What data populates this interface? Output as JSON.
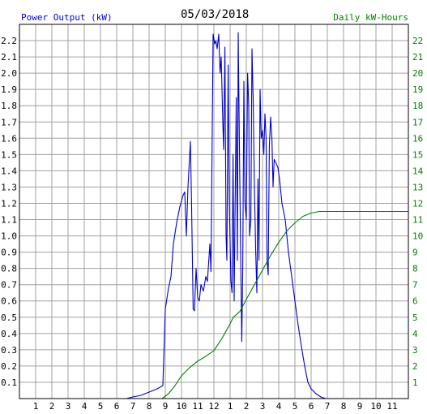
{
  "chart_data": {
    "type": "line",
    "title": "05/03/2018",
    "left_axis_label": "Power Output (kW)",
    "right_axis_label": "Daily kW-Hours",
    "x_tick_labels": [
      "1",
      "2",
      "3",
      "4",
      "5",
      "6",
      "7",
      "8",
      "9",
      "10",
      "11",
      "12",
      "1",
      "2",
      "3",
      "4",
      "5",
      "6",
      "7",
      "8",
      "9",
      "10",
      "11"
    ],
    "x_range_hours": [
      0,
      24
    ],
    "y_left_ticks": [
      "0.1",
      "0.2",
      "0.3",
      "0.4",
      "0.5",
      "0.6",
      "0.7",
      "0.8",
      "0.9",
      "1.0",
      "1.1",
      "1.2",
      "1.3",
      "1.4",
      "1.5",
      "1.6",
      "1.7",
      "1.8",
      "1.9",
      "2.0",
      "2.1",
      "2.2"
    ],
    "y_left_range": [
      0,
      2.3
    ],
    "y_right_ticks": [
      "1",
      "2",
      "3",
      "4",
      "5",
      "6",
      "7",
      "8",
      "9",
      "10",
      "11",
      "12",
      "13",
      "14",
      "15",
      "16",
      "17",
      "18",
      "19",
      "20",
      "21",
      "22"
    ],
    "y_right_range": [
      0,
      23
    ],
    "grid": true,
    "colors": {
      "power": "#0000cc",
      "energy": "#008000",
      "grid": "#a0a0a0",
      "axis": "#000000",
      "left_label": "#0000cc",
      "right_label": "#008000"
    },
    "series": [
      {
        "name": "Power Output (kW)",
        "axis": "left",
        "color": "#0000cc",
        "points": [
          [
            6.6,
            0.0
          ],
          [
            7.0,
            0.01
          ],
          [
            7.5,
            0.02
          ],
          [
            8.0,
            0.04
          ],
          [
            8.5,
            0.06
          ],
          [
            8.85,
            0.08
          ],
          [
            9.0,
            0.55
          ],
          [
            9.2,
            0.68
          ],
          [
            9.35,
            0.75
          ],
          [
            9.5,
            0.95
          ],
          [
            9.7,
            1.08
          ],
          [
            9.9,
            1.18
          ],
          [
            10.1,
            1.25
          ],
          [
            10.2,
            1.27
          ],
          [
            10.3,
            1.0
          ],
          [
            10.4,
            1.3
          ],
          [
            10.55,
            1.58
          ],
          [
            10.62,
            1.2
          ],
          [
            10.72,
            0.55
          ],
          [
            10.8,
            0.54
          ],
          [
            10.9,
            0.8
          ],
          [
            11.0,
            0.62
          ],
          [
            11.1,
            0.6
          ],
          [
            11.2,
            0.7
          ],
          [
            11.35,
            0.66
          ],
          [
            11.5,
            0.75
          ],
          [
            11.6,
            0.72
          ],
          [
            11.75,
            0.95
          ],
          [
            11.82,
            0.78
          ],
          [
            11.95,
            2.24
          ],
          [
            12.05,
            2.18
          ],
          [
            12.12,
            2.2
          ],
          [
            12.2,
            2.15
          ],
          [
            12.3,
            2.24
          ],
          [
            12.38,
            2.0
          ],
          [
            12.45,
            2.1
          ],
          [
            12.55,
            1.7
          ],
          [
            12.6,
            1.53
          ],
          [
            12.68,
            2.16
          ],
          [
            12.75,
            1.0
          ],
          [
            12.8,
            0.85
          ],
          [
            12.88,
            2.05
          ],
          [
            12.95,
            1.2
          ],
          [
            13.05,
            0.72
          ],
          [
            13.12,
            0.65
          ],
          [
            13.18,
            1.5
          ],
          [
            13.25,
            0.6
          ],
          [
            13.3,
            1.1
          ],
          [
            13.38,
            1.85
          ],
          [
            13.45,
            0.85
          ],
          [
            13.5,
            2.25
          ],
          [
            13.58,
            1.5
          ],
          [
            13.65,
            0.9
          ],
          [
            13.72,
            0.35
          ],
          [
            13.78,
            0.8
          ],
          [
            13.85,
            1.95
          ],
          [
            13.92,
            1.2
          ],
          [
            14.0,
            1.1
          ],
          [
            14.08,
            2.0
          ],
          [
            14.15,
            1.8
          ],
          [
            14.2,
            1.0
          ],
          [
            14.28,
            1.1
          ],
          [
            14.35,
            2.15
          ],
          [
            14.42,
            1.85
          ],
          [
            14.5,
            1.3
          ],
          [
            14.58,
            0.9
          ],
          [
            14.65,
            0.65
          ],
          [
            14.72,
            1.35
          ],
          [
            14.78,
            0.85
          ],
          [
            14.85,
            1.9
          ],
          [
            14.92,
            1.6
          ],
          [
            15.0,
            1.65
          ],
          [
            15.08,
            1.5
          ],
          [
            15.15,
            1.75
          ],
          [
            15.22,
            1.6
          ],
          [
            15.28,
            0.85
          ],
          [
            15.35,
            0.76
          ],
          [
            15.42,
            1.55
          ],
          [
            15.5,
            1.73
          ],
          [
            15.58,
            1.6
          ],
          [
            15.65,
            1.3
          ],
          [
            15.72,
            1.47
          ],
          [
            15.82,
            1.45
          ],
          [
            15.95,
            1.42
          ],
          [
            16.05,
            1.35
          ],
          [
            16.2,
            1.2
          ],
          [
            16.4,
            1.1
          ],
          [
            16.6,
            0.9
          ],
          [
            16.8,
            0.75
          ],
          [
            17.0,
            0.6
          ],
          [
            17.2,
            0.45
          ],
          [
            17.4,
            0.32
          ],
          [
            17.6,
            0.2
          ],
          [
            17.8,
            0.1
          ],
          [
            18.0,
            0.06
          ],
          [
            18.3,
            0.03
          ],
          [
            18.6,
            0.01
          ],
          [
            18.9,
            0.0
          ],
          [
            19.2,
            0.0
          ]
        ]
      },
      {
        "name": "Daily kW-Hours",
        "axis": "right",
        "color": "#008000",
        "points": [
          [
            6.6,
            0.0
          ],
          [
            8.8,
            0.0
          ],
          [
            9.2,
            0.3
          ],
          [
            9.6,
            0.8
          ],
          [
            10.0,
            1.4
          ],
          [
            10.5,
            1.9
          ],
          [
            11.0,
            2.3
          ],
          [
            11.5,
            2.6
          ],
          [
            12.0,
            2.95
          ],
          [
            12.5,
            3.7
          ],
          [
            13.0,
            4.6
          ],
          [
            13.2,
            5.0
          ],
          [
            13.6,
            5.35
          ],
          [
            14.0,
            6.1
          ],
          [
            14.5,
            7.0
          ],
          [
            15.0,
            7.9
          ],
          [
            15.5,
            8.8
          ],
          [
            16.0,
            9.6
          ],
          [
            16.5,
            10.3
          ],
          [
            17.0,
            10.8
          ],
          [
            17.5,
            11.2
          ],
          [
            18.0,
            11.4
          ],
          [
            18.5,
            11.5
          ],
          [
            19.0,
            11.5
          ],
          [
            24.0,
            11.5
          ]
        ]
      }
    ]
  }
}
